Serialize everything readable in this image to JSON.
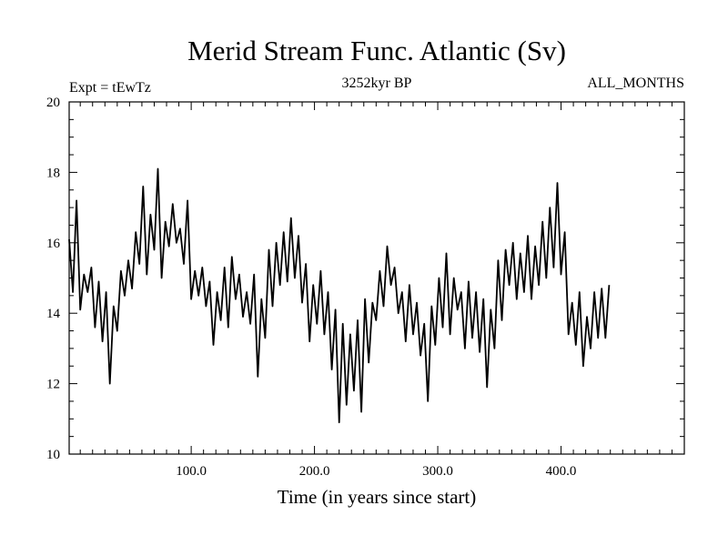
{
  "chart_data": {
    "type": "line",
    "title": "Merid Stream Func. Atlantic (Sv)",
    "subtitle_left": "Expt = tEwTz",
    "subtitle_center": "3252kyr BP",
    "subtitle_right": "ALL_MONTHS",
    "xlabel": "Time (in years since start)",
    "ylabel": "",
    "xlim": [
      1,
      500
    ],
    "ylim": [
      10,
      20
    ],
    "x_ticks": [
      100,
      200,
      300,
      400
    ],
    "x_tick_labels": [
      "100.0",
      "200.0",
      "300.0",
      "400.0"
    ],
    "y_ticks": [
      10,
      12,
      14,
      16,
      18,
      20
    ],
    "y_tick_labels": [
      "10",
      "12",
      "14",
      "16",
      "18",
      "20"
    ],
    "grid": false,
    "series": [
      {
        "name": "Merid Stream Func. Atlantic",
        "x_start": 1,
        "x_step": 3,
        "values": [
          16.1,
          14.6,
          17.2,
          14.1,
          15.1,
          14.6,
          15.3,
          13.6,
          14.9,
          13.2,
          14.6,
          12.0,
          14.2,
          13.5,
          15.2,
          14.5,
          15.5,
          14.7,
          16.3,
          15.4,
          17.6,
          15.1,
          16.8,
          15.8,
          18.1,
          15.0,
          16.6,
          15.9,
          17.1,
          16.0,
          16.4,
          15.4,
          17.2,
          14.4,
          15.2,
          14.5,
          15.3,
          14.2,
          14.9,
          13.1,
          14.6,
          13.8,
          15.3,
          13.6,
          15.6,
          14.4,
          15.1,
          13.9,
          14.6,
          13.7,
          15.1,
          12.2,
          14.4,
          13.3,
          15.8,
          14.2,
          16.0,
          14.8,
          16.3,
          14.9,
          16.7,
          15.0,
          16.2,
          14.3,
          15.4,
          13.2,
          14.8,
          13.7,
          15.2,
          13.4,
          14.6,
          12.4,
          14.1,
          10.9,
          13.7,
          11.4,
          13.4,
          11.8,
          13.8,
          11.2,
          14.4,
          12.6,
          14.3,
          13.8,
          15.2,
          14.2,
          15.9,
          14.8,
          15.3,
          14.0,
          14.6,
          13.2,
          14.8,
          13.4,
          14.3,
          12.8,
          13.7,
          11.5,
          14.2,
          13.1,
          15.0,
          13.6,
          15.7,
          13.4,
          15.0,
          14.1,
          14.6,
          13.0,
          14.9,
          13.3,
          14.6,
          12.9,
          14.4,
          11.9,
          14.1,
          13.0,
          15.5,
          13.8,
          15.8,
          14.8,
          16.0,
          14.4,
          15.7,
          14.6,
          16.2,
          14.4,
          15.9,
          14.8,
          16.6,
          15.0,
          17.0,
          15.3,
          17.7,
          15.1,
          16.3,
          13.4,
          14.3,
          13.1,
          14.6,
          12.5,
          13.9,
          13.0,
          14.6,
          13.3,
          14.7,
          13.3,
          14.8
        ]
      }
    ]
  }
}
